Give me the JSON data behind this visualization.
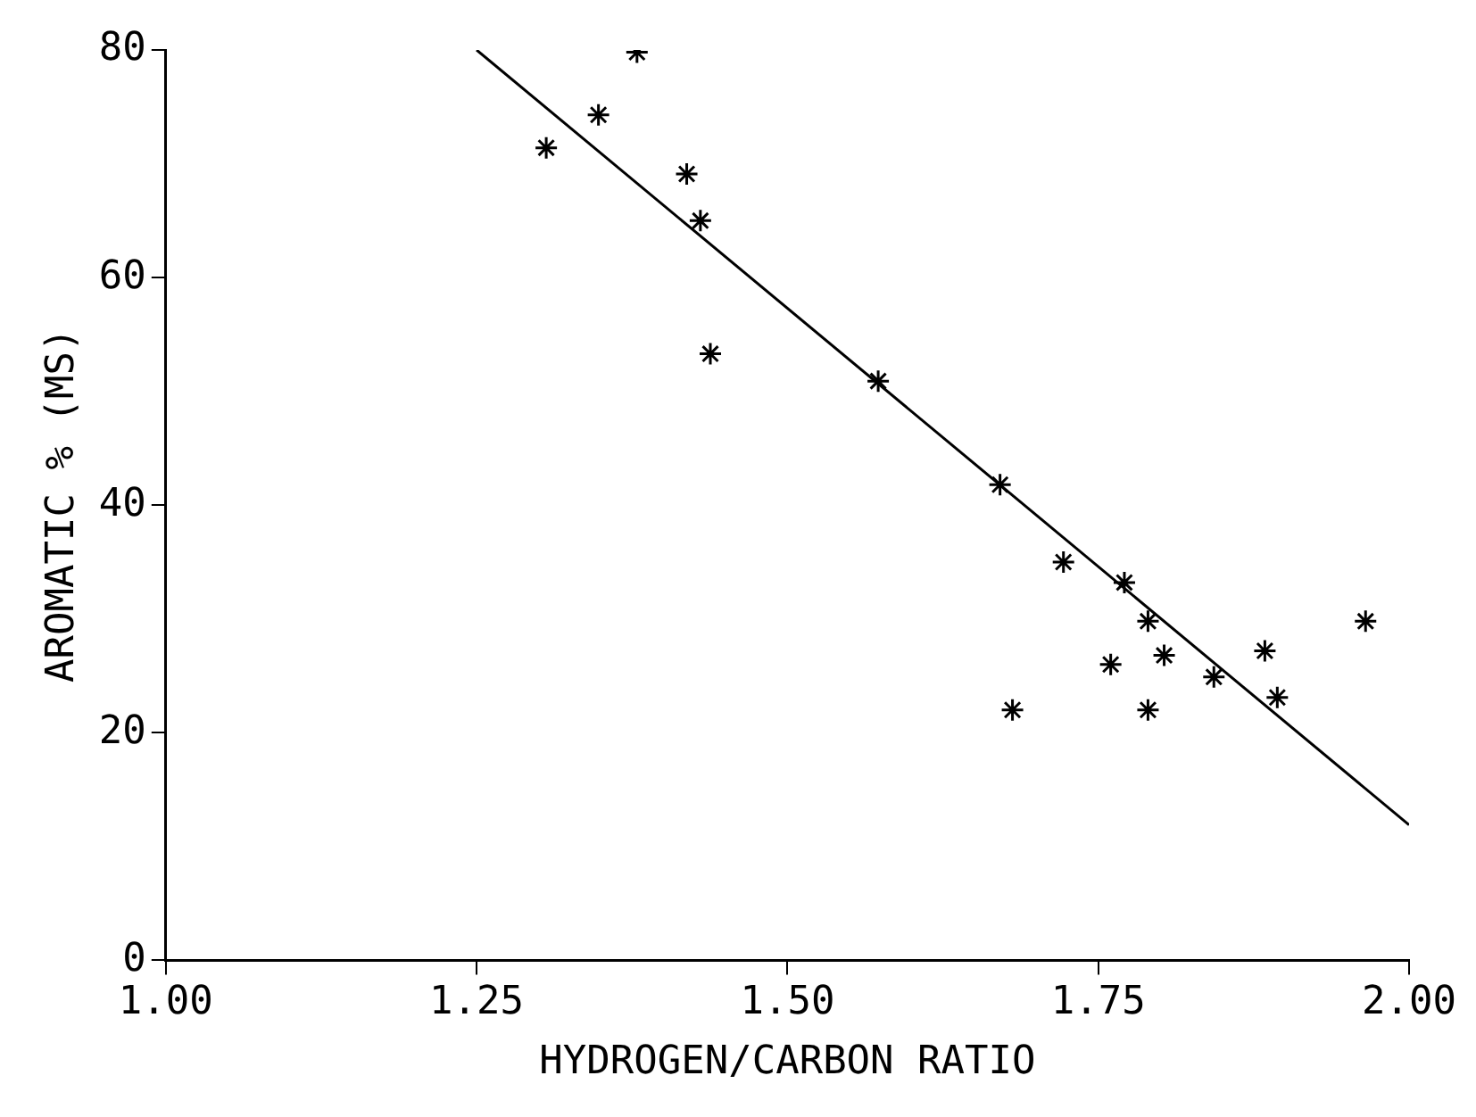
{
  "chart_data": {
    "type": "scatter",
    "xlabel": "HYDROGEN/CARBON RATIO",
    "ylabel": "AROMATIC % (MS)",
    "xlim": [
      1,
      2
    ],
    "xticks": [
      {
        "value": 1,
        "label": "1.00"
      },
      1.25,
      {
        "value": 1.5,
        "label": "1.50"
      },
      1.75,
      {
        "value": 2,
        "label": "2.00"
      }
    ],
    "ylim": [
      0,
      80
    ],
    "yticks": [
      0,
      20,
      40,
      60,
      80
    ],
    "grid": false,
    "legend": false,
    "marker": "cross",
    "series": [
      {
        "color": "#000000",
        "x": [
          1.306,
          1.379,
          1.348,
          1.419,
          1.43,
          1.438,
          1.573,
          1.671,
          1.722,
          1.771,
          1.79,
          1.76,
          1.803,
          1.681,
          1.79,
          1.843,
          1.884,
          1.894,
          1.965
        ],
        "values": [
          71.4,
          79.8,
          74.3,
          69.1,
          65,
          53.3,
          50.9,
          41.8,
          35,
          33.2,
          29.8,
          26,
          26.8,
          22,
          22,
          24.9,
          27.2,
          23.1,
          29.8
        ]
      },
      {
        "type": "line",
        "color": "#000000",
        "x": [
          1.25,
          2
        ],
        "values": [
          80,
          11.9
        ],
        "marker": "none",
        "line_style": "solid"
      }
    ]
  }
}
